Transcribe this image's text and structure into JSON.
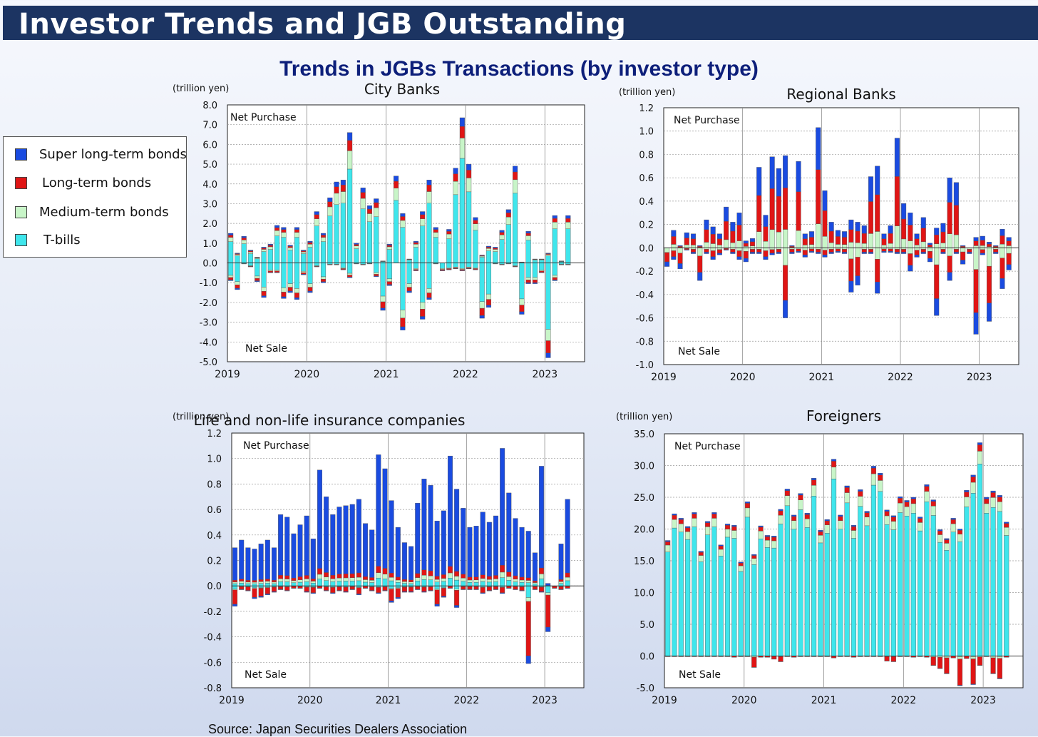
{
  "header": {
    "title": "Investor Trends and JGB Outstanding"
  },
  "subtitle": "Trends in JGBs Transactions (by investor type)",
  "source": "Source: Japan Securities Dealers Association",
  "legend": {
    "items": [
      {
        "label": "Super long-term bonds",
        "color": "#1a4be0"
      },
      {
        "label": "Long-term bonds",
        "color": "#e01515"
      },
      {
        "label": "Medium-term bonds",
        "color": "#c8f5c8"
      },
      {
        "label": "T-bills",
        "color": "#3fe6ec"
      }
    ]
  },
  "chart_data": [
    {
      "type": "bar",
      "title": "City Banks",
      "unit": "(trillion yen)",
      "ylim": [
        -5.0,
        8.0
      ],
      "yticks": [
        "8.0",
        "7.0",
        "6.0",
        "5.0",
        "4.0",
        "3.0",
        "2.0",
        "1.0",
        "0.0",
        "-1.0",
        "-2.0",
        "-3.0",
        "-4.0",
        "-5.0"
      ],
      "ytick_values": [
        8,
        7,
        6,
        5,
        4,
        3,
        2,
        1,
        0,
        -1,
        -2,
        -3,
        -4,
        -5
      ],
      "xticks": [
        "2019",
        "2020",
        "2021",
        "2022",
        "2023"
      ],
      "annotations": {
        "top": "Net Purchase",
        "bottom": "Net Sale"
      },
      "x_start": "2019-01",
      "grid": true,
      "series_order": [
        "T-bills",
        "Medium-term bonds",
        "Long-term bonds",
        "Super long-term bonds"
      ],
      "pos_totals": [
        1.5,
        0.5,
        1.35,
        0.65,
        0.3,
        0.8,
        0.95,
        1.9,
        1.8,
        0.9,
        1.8,
        0.65,
        1.1,
        2.6,
        1.5,
        3.3,
        4.1,
        4.2,
        6.6,
        1.0,
        3.8,
        2.9,
        3.25,
        0.1,
        0.95,
        4.4,
        2.5,
        0.2,
        1.1,
        2.6,
        4.2,
        1.8,
        0.0,
        1.7,
        4.8,
        7.35,
        5.0,
        2.3,
        0.4,
        0.85,
        0.8,
        1.65,
        2.7,
        4.9,
        0.05,
        1.6,
        0.2,
        0.2,
        0.5,
        2.4,
        0.1,
        2.4
      ],
      "neg_totals": [
        -0.9,
        -1.35,
        -0.05,
        -0.2,
        -0.95,
        -1.75,
        -0.5,
        -0.5,
        -1.8,
        -1.5,
        -1.85,
        -0.6,
        -1.5,
        -0.2,
        -1.0,
        -0.1,
        -0.1,
        -0.35,
        -0.75,
        -0.05,
        -0.1,
        -0.05,
        -0.7,
        -2.4,
        -1.15,
        0,
        -3.4,
        -1.5,
        -0.4,
        -2.85,
        -1.85,
        -0.05,
        -0.4,
        -0.35,
        -0.3,
        -0.4,
        -0.3,
        -0.35,
        -2.8,
        -2.25,
        -0.05,
        -0.1,
        -0.05,
        -0.2,
        -2.6,
        -1.05,
        -1.05,
        -0.5,
        -4.8,
        -0.9,
        -0.1,
        -0.1
      ]
    },
    {
      "type": "bar",
      "title": "Regional Banks",
      "unit": "(trillion yen)",
      "ylim": [
        -1.0,
        1.2
      ],
      "yticks": [
        "1.2",
        "1.0",
        "0.8",
        "0.6",
        "0.4",
        "0.2",
        "0.0",
        "-0.2",
        "-0.4",
        "-0.6",
        "-0.8",
        "-1.0"
      ],
      "ytick_values": [
        1.2,
        1.0,
        0.8,
        0.6,
        0.4,
        0.2,
        0.0,
        -0.2,
        -0.4,
        -0.6,
        -0.8,
        -1.0
      ],
      "xticks": [
        "2019",
        "2020",
        "2021",
        "2022",
        "2023"
      ],
      "annotations": {
        "top": "Net Purchase",
        "bottom": "Net Sale"
      },
      "x_start": "2019-01",
      "grid": true,
      "series_order": [
        "T-bills",
        "Medium-term bonds",
        "Long-term bonds",
        "Super long-term bonds"
      ],
      "pos_totals": [
        0.0,
        0.15,
        0.02,
        0.13,
        0.12,
        0.02,
        0.24,
        0.18,
        0.12,
        0.35,
        0.22,
        0.3,
        0.06,
        0.08,
        0.69,
        0.28,
        0.78,
        0.68,
        0.79,
        0.02,
        0.74,
        0.12,
        0.14,
        1.03,
        0.49,
        0.22,
        0.15,
        0.14,
        0.24,
        0.22,
        0.19,
        0.61,
        0.7,
        0.12,
        0.19,
        0.94,
        0.38,
        0.3,
        0.12,
        0.26,
        0.04,
        0.17,
        0.21,
        0.6,
        0.56,
        0.02,
        0.0,
        0.09,
        0.1,
        0.05,
        0.02,
        0.16,
        0.09
      ],
      "neg_totals": [
        -0.16,
        -0.1,
        -0.18,
        -0.02,
        -0.05,
        -0.28,
        -0.05,
        -0.1,
        -0.06,
        -0.02,
        -0.05,
        -0.1,
        -0.12,
        -0.05,
        -0.05,
        -0.1,
        -0.06,
        -0.05,
        -0.6,
        -0.05,
        -0.04,
        -0.08,
        -0.04,
        -0.05,
        -0.08,
        -0.05,
        -0.04,
        -0.05,
        -0.38,
        -0.32,
        -0.05,
        -0.05,
        -0.39,
        -0.04,
        -0.04,
        -0.05,
        -0.05,
        -0.2,
        -0.08,
        -0.05,
        -0.12,
        -0.58,
        -0.05,
        -0.28,
        -0.05,
        -0.14,
        -0.05,
        -0.74,
        -0.06,
        -0.63,
        -0.05,
        -0.35,
        -0.19
      ]
    },
    {
      "type": "bar",
      "title": "Life and non-life insurance companies",
      "unit": "(trillion yen)",
      "ylim": [
        -0.8,
        1.2
      ],
      "yticks": [
        "1.2",
        "1.0",
        "0.8",
        "0.6",
        "0.4",
        "0.2",
        "0.0",
        "-0.2",
        "-0.4",
        "-0.6",
        "-0.8"
      ],
      "ytick_values": [
        1.2,
        1.0,
        0.8,
        0.6,
        0.4,
        0.2,
        0.0,
        -0.2,
        -0.4,
        -0.6,
        -0.8
      ],
      "xticks": [
        "2019",
        "2020",
        "2021",
        "2022",
        "2023"
      ],
      "annotations": {
        "top": "Net Purchase",
        "bottom": "Net Sale"
      },
      "x_start": "2019-01",
      "grid": true,
      "series_order": [
        "T-bills",
        "Medium-term bonds",
        "Long-term bonds",
        "Super long-term bonds"
      ],
      "pos_totals": [
        0.3,
        0.36,
        0.3,
        0.29,
        0.33,
        0.36,
        0.3,
        0.56,
        0.54,
        0.41,
        0.48,
        0.55,
        0.37,
        0.91,
        0.7,
        0.56,
        0.62,
        0.63,
        0.64,
        0.68,
        0.49,
        0.44,
        1.03,
        0.92,
        0.67,
        0.46,
        0.34,
        0.31,
        0.65,
        0.84,
        0.79,
        0.51,
        0.59,
        1.02,
        0.76,
        0.61,
        0.46,
        0.47,
        0.58,
        0.5,
        0.55,
        1.08,
        0.73,
        0.53,
        0.46,
        0.43,
        0.26,
        0.94,
        0.02,
        0.0,
        0.33,
        0.68
      ],
      "neg_totals": [
        -0.16,
        -0.03,
        -0.04,
        -0.1,
        -0.09,
        -0.07,
        -0.05,
        -0.03,
        -0.04,
        -0.02,
        -0.02,
        -0.05,
        -0.06,
        -0.02,
        -0.04,
        -0.06,
        -0.04,
        -0.05,
        -0.03,
        -0.07,
        -0.02,
        -0.04,
        -0.06,
        -0.04,
        -0.13,
        -0.1,
        -0.05,
        -0.05,
        -0.03,
        -0.05,
        -0.04,
        -0.16,
        -0.09,
        -0.02,
        -0.17,
        -0.03,
        -0.03,
        -0.03,
        -0.06,
        -0.04,
        -0.03,
        -0.06,
        -0.02,
        -0.03,
        -0.04,
        -0.61,
        -0.03,
        -0.05,
        -0.36,
        -0.02,
        -0.03,
        -0.02
      ]
    },
    {
      "type": "bar",
      "title": "Foreigners",
      "unit": "(trillion yen)",
      "ylim": [
        -5.0,
        35.0
      ],
      "yticks": [
        "35.0",
        "30.0",
        "25.0",
        "20.0",
        "15.0",
        "10.0",
        "5.0",
        "0.0",
        "-5.0"
      ],
      "ytick_values": [
        35,
        30,
        25,
        20,
        15,
        10,
        5,
        0,
        -5
      ],
      "xticks": [
        "2019",
        "2020",
        "2021",
        "2022",
        "2023"
      ],
      "annotations": {
        "top": "Net Purchase",
        "bottom": "Net Sale"
      },
      "x_start": "2019-01",
      "grid": true,
      "series_order": [
        "T-bills",
        "Medium-term bonds",
        "Long-term bonds",
        "Super long-term bonds"
      ],
      "pos_totals": [
        18.2,
        22.4,
        21.7,
        20.4,
        22.6,
        16.5,
        21.2,
        22.6,
        17.5,
        20.8,
        20.6,
        14.8,
        24.3,
        16.0,
        20.5,
        19.0,
        18.9,
        23.1,
        26.3,
        22.2,
        25.6,
        22.5,
        28.0,
        19.8,
        21.5,
        31.0,
        22.2,
        26.8,
        20.6,
        26.2,
        22.8,
        29.9,
        28.8,
        23.0,
        22.1,
        25.1,
        24.5,
        25.0,
        21.9,
        27.0,
        24.6,
        19.9,
        18.5,
        21.7,
        20.0,
        26.1,
        28.5,
        33.6,
        25.0,
        26.0,
        25.3,
        21.1
      ],
      "neg_totals": [
        -0.1,
        -0.1,
        -0.1,
        -0.1,
        -0.1,
        -0.1,
        -0.1,
        -0.1,
        -0.1,
        -0.1,
        -0.2,
        -0.1,
        -0.1,
        -1.8,
        -0.2,
        -0.2,
        -0.5,
        -0.9,
        -0.1,
        -0.2,
        -0.1,
        -0.1,
        -0.1,
        -0.1,
        -0.1,
        -0.3,
        -0.1,
        -0.1,
        -0.2,
        -0.1,
        -0.1,
        -0.1,
        -0.1,
        -0.8,
        -0.9,
        -0.1,
        -0.1,
        -0.2,
        -0.1,
        -0.2,
        -1.5,
        -2.0,
        -2.8,
        -0.3,
        -4.7,
        -0.4,
        -4.5,
        -1.5,
        -0.1,
        -2.8,
        -3.6,
        -0.2
      ]
    }
  ]
}
